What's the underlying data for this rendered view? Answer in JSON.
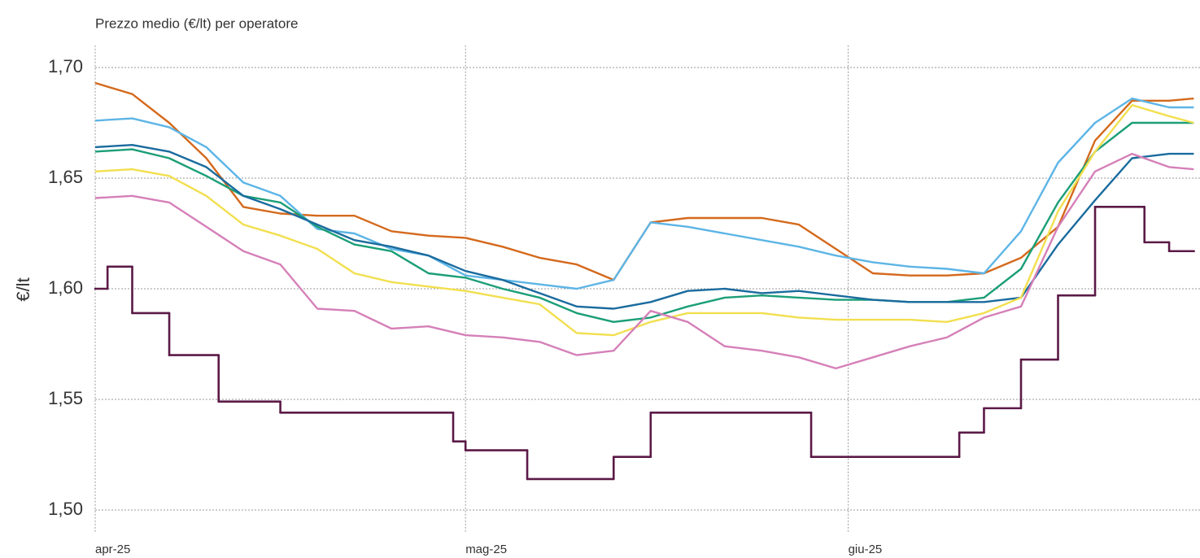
{
  "chart_data": {
    "type": "line",
    "title": "Prezzo medio (€/lt) per operatore",
    "ylabel": "€/lt",
    "grid": true,
    "xlim": [
      0,
      89.5
    ],
    "xticks": [
      {
        "value": 0,
        "label": "apr-25"
      },
      {
        "value": 30,
        "label": "mag-25"
      },
      {
        "value": 61,
        "label": "giu-25"
      }
    ],
    "ylim": [
      1.49,
      1.71
    ],
    "yticks": [
      {
        "value": 1.5,
        "label": "1,50"
      },
      {
        "value": 1.55,
        "label": "1,55"
      },
      {
        "value": 1.6,
        "label": "1,60"
      },
      {
        "value": 1.65,
        "label": "1,65"
      },
      {
        "value": 1.7,
        "label": "1,70"
      }
    ],
    "x": [
      0,
      3,
      6,
      9,
      12,
      15,
      18,
      21,
      24,
      27,
      30,
      33,
      36,
      39,
      42,
      45,
      48,
      51,
      54,
      57,
      60,
      63,
      66,
      69,
      72,
      75,
      78,
      81,
      84,
      87,
      89
    ],
    "series": [
      {
        "color": "#d4691c",
        "values": [
          1.693,
          1.688,
          1.675,
          1.659,
          1.637,
          1.634,
          1.633,
          1.633,
          1.626,
          1.624,
          1.623,
          1.619,
          1.614,
          1.611,
          1.604,
          1.63,
          1.632,
          1.632,
          1.632,
          1.629,
          1.618,
          1.607,
          1.606,
          1.606,
          1.607,
          1.614,
          1.628,
          1.667,
          1.685,
          1.685,
          1.686
        ]
      },
      {
        "color": "#5db5e6",
        "values": [
          1.676,
          1.677,
          1.673,
          1.664,
          1.648,
          1.642,
          1.627,
          1.625,
          1.618,
          1.615,
          1.606,
          1.604,
          1.602,
          1.6,
          1.604,
          1.63,
          1.628,
          1.625,
          1.622,
          1.619,
          1.615,
          1.612,
          1.61,
          1.609,
          1.607,
          1.626,
          1.657,
          1.675,
          1.686,
          1.682,
          1.682
        ]
      },
      {
        "color": "#1b9e77",
        "values": [
          1.662,
          1.663,
          1.659,
          1.651,
          1.642,
          1.639,
          1.628,
          1.62,
          1.617,
          1.607,
          1.605,
          1.6,
          1.596,
          1.589,
          1.585,
          1.587,
          1.592,
          1.596,
          1.597,
          1.596,
          1.595,
          1.595,
          1.594,
          1.594,
          1.596,
          1.609,
          1.639,
          1.662,
          1.675,
          1.675,
          1.675
        ]
      },
      {
        "color": "#1a6b9e",
        "values": [
          1.664,
          1.665,
          1.662,
          1.655,
          1.642,
          1.636,
          1.629,
          1.622,
          1.619,
          1.615,
          1.608,
          1.604,
          1.598,
          1.592,
          1.591,
          1.594,
          1.599,
          1.6,
          1.598,
          1.599,
          1.597,
          1.595,
          1.594,
          1.594,
          1.594,
          1.596,
          1.62,
          1.64,
          1.659,
          1.661,
          1.661
        ]
      },
      {
        "color": "#f2df4f",
        "values": [
          1.653,
          1.654,
          1.651,
          1.642,
          1.629,
          1.624,
          1.618,
          1.607,
          1.603,
          1.601,
          1.599,
          1.596,
          1.593,
          1.58,
          1.579,
          1.585,
          1.589,
          1.589,
          1.589,
          1.587,
          1.586,
          1.586,
          1.586,
          1.585,
          1.589,
          1.596,
          1.635,
          1.662,
          1.683,
          1.678,
          1.675
        ]
      },
      {
        "color": "#d580b8",
        "values": [
          1.641,
          1.642,
          1.639,
          1.628,
          1.617,
          1.611,
          1.591,
          1.59,
          1.582,
          1.583,
          1.579,
          1.578,
          1.576,
          1.57,
          1.572,
          1.59,
          1.585,
          1.574,
          1.572,
          1.569,
          1.564,
          1.569,
          1.574,
          1.578,
          1.587,
          1.592,
          1.628,
          1.653,
          1.661,
          1.655,
          1.654
        ]
      },
      {
        "color": "#5b1a47",
        "step": "post",
        "x": [
          0,
          1,
          3,
          6,
          10,
          15,
          29,
          30,
          35,
          42,
          45,
          58,
          70,
          72,
          75,
          78,
          81,
          85,
          87,
          89
        ],
        "values": [
          1.6,
          1.61,
          1.589,
          1.57,
          1.549,
          1.544,
          1.531,
          1.527,
          1.514,
          1.524,
          1.544,
          1.524,
          1.535,
          1.546,
          1.568,
          1.597,
          1.637,
          1.621,
          1.617,
          1.617
        ]
      }
    ]
  }
}
